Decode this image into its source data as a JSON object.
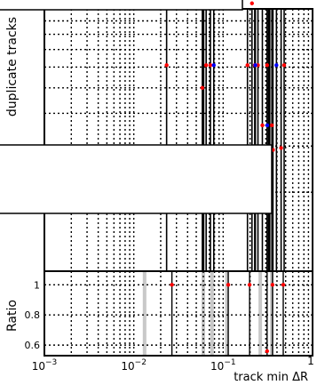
{
  "chart_data": [
    {
      "type": "scatter",
      "panel": "main",
      "ylabel": "duplicate tracks",
      "xscale": "log",
      "xlim": [
        0.001,
        1
      ],
      "yscale": "log",
      "ylim": [
        1,
        10
      ],
      "grid": true,
      "legend": "",
      "series": [
        {
          "color": "#ff0000",
          "x": [
            0.0233,
            0.0585,
            0.0605,
            0.0645,
            0.072,
            0.187,
            0.21,
            0.2255,
            0.245,
            0.2745,
            0.31,
            0.3235,
            0.351,
            0.3605,
            0.445,
            0.481
          ],
          "y": [
            6.1,
            5.0,
            10.5,
            6.1,
            6.1,
            6.1,
            10.5,
            6.1,
            6.1,
            3.6,
            6.1,
            2.95,
            3.6,
            2.9,
            2.95,
            6.1
          ]
        },
        {
          "color": "#0000ff",
          "x": [
            0.0785,
            0.229,
            0.3115,
            0.332,
            0.3945
          ],
          "y": [
            6.1,
            6.1,
            3.6,
            2.9,
            6.1
          ]
        }
      ]
    },
    {
      "type": "scatter",
      "panel": "ratio",
      "ylabel": "Ratio",
      "xlabel": "track min ΔR",
      "xscale": "log",
      "xlim": [
        0.001,
        1
      ],
      "ylim": [
        0.53,
        1.09
      ],
      "grid": true,
      "xticks": [
        {
          "base": "10",
          "exp": "−3",
          "value": 0.001
        },
        {
          "base": "10",
          "exp": "−2",
          "value": 0.01
        },
        {
          "base": "10",
          "exp": "−1",
          "value": 0.1
        },
        {
          "base": "",
          "exp": "",
          "value": 1
        }
      ],
      "yticks": [
        "1",
        "0.8",
        "0.6"
      ],
      "ytick_values": [
        1.0,
        0.8,
        0.6
      ],
      "series": [
        {
          "color": "#ff0000",
          "x": [
            0.0267,
            0.114,
            0.1975,
            0.31,
            0.3565,
            0.47
          ],
          "y": [
            1.0,
            1.0,
            1.0,
            0.56,
            1.0,
            1.0
          ]
        }
      ],
      "bands_x": [
        0.0132,
        0.06,
        0.075,
        0.11,
        0.26,
        0.35
      ]
    }
  ],
  "overlays": {
    "top_box_text": "",
    "side_box_text": ""
  }
}
